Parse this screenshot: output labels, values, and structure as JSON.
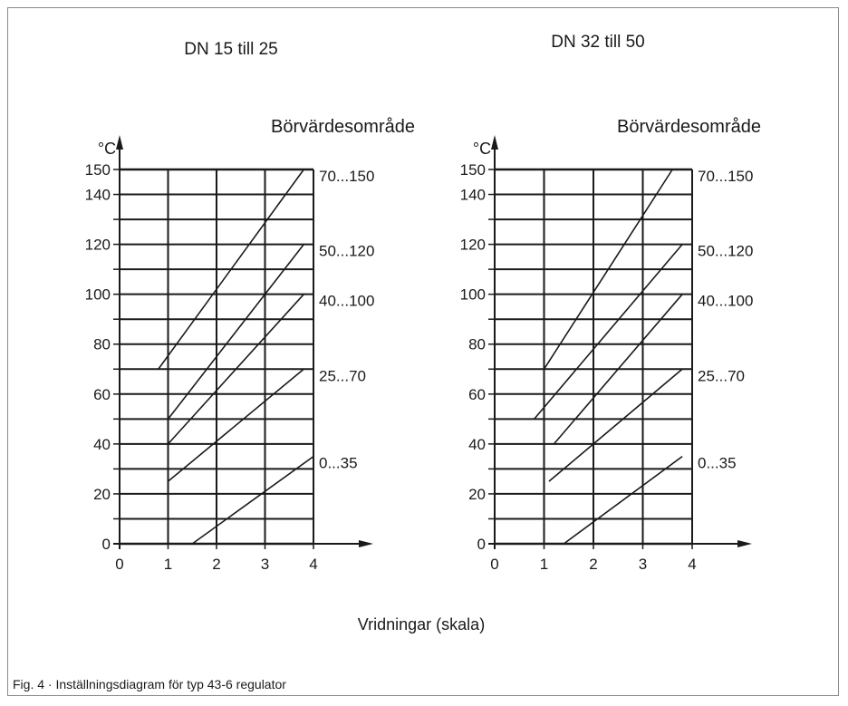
{
  "caption": "Fig. 4 · Inställningsdiagram för typ 43-6 regulator",
  "shared_xlabel": "Vridningar (skala)",
  "chart_data": [
    {
      "type": "line",
      "title": "DN 15 till 25",
      "legend_title": "Börvärdesområde",
      "yunit": "°C",
      "xlabel": "Vridningar (skala)",
      "xlim": [
        0,
        4
      ],
      "ylim": [
        0,
        150
      ],
      "xticks": [
        "0",
        "1",
        "2",
        "3",
        "4"
      ],
      "yticks": [
        "0",
        "20",
        "40",
        "60",
        "80",
        "100",
        "120",
        "140",
        "150"
      ],
      "grid": true,
      "series": [
        {
          "name": "70...150",
          "points": [
            [
              0.8,
              70
            ],
            [
              3.8,
              150
            ]
          ]
        },
        {
          "name": "50...120",
          "points": [
            [
              1.0,
              50
            ],
            [
              3.8,
              120
            ]
          ]
        },
        {
          "name": "40...100",
          "points": [
            [
              1.0,
              40
            ],
            [
              3.8,
              100
            ]
          ]
        },
        {
          "name": "25...70",
          "points": [
            [
              1.0,
              25
            ],
            [
              3.8,
              70
            ]
          ]
        },
        {
          "name": "0...35",
          "points": [
            [
              1.5,
              0
            ],
            [
              4.0,
              35
            ]
          ]
        }
      ]
    },
    {
      "type": "line",
      "title": "DN 32 till 50",
      "legend_title": "Börvärdesområde",
      "yunit": "°C",
      "xlabel": "Vridningar (skala)",
      "xlim": [
        0,
        4
      ],
      "ylim": [
        0,
        150
      ],
      "xticks": [
        "0",
        "1",
        "2",
        "3",
        "4"
      ],
      "yticks": [
        "0",
        "20",
        "40",
        "60",
        "80",
        "100",
        "120",
        "140",
        "150"
      ],
      "grid": true,
      "series": [
        {
          "name": "70...150",
          "points": [
            [
              1.0,
              70
            ],
            [
              3.6,
              150
            ]
          ]
        },
        {
          "name": "50...120",
          "points": [
            [
              0.8,
              50
            ],
            [
              3.8,
              120
            ]
          ]
        },
        {
          "name": "40...100",
          "points": [
            [
              1.2,
              40
            ],
            [
              3.8,
              100
            ]
          ]
        },
        {
          "name": "25...70",
          "points": [
            [
              1.1,
              25
            ],
            [
              3.8,
              70
            ]
          ]
        },
        {
          "name": "0...35",
          "points": [
            [
              1.4,
              0
            ],
            [
              3.8,
              35
            ]
          ]
        }
      ]
    }
  ]
}
